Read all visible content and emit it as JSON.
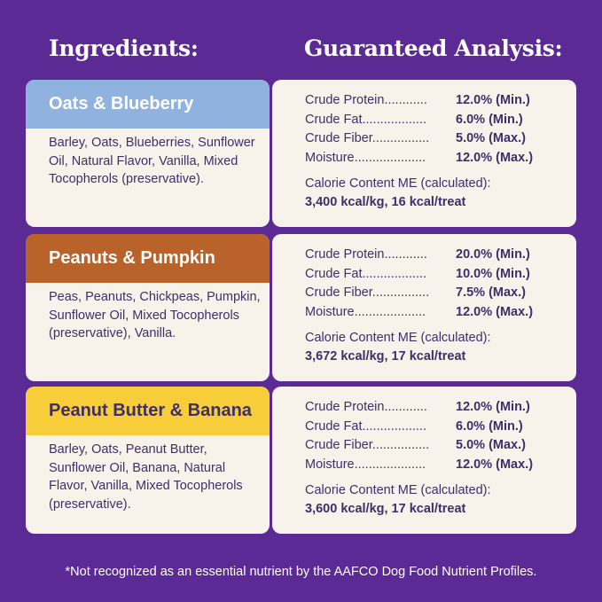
{
  "headings": {
    "ingredients": "Ingredients:",
    "analysis": "Guaranteed Analysis:"
  },
  "products": [
    {
      "name": "Oats & Blueberry",
      "band_color": "#8fb3de",
      "name_color": "#ffffff",
      "ingredients": "Barley, Oats, Blueberries, Sunflower Oil, Natural Flavor, Vanilla, Mixed Tocopherols (preservative).",
      "analysis": [
        {
          "label": "Crude Protein............",
          "value": "12.0% (Min.)"
        },
        {
          "label": "Crude  Fat..................",
          "value": "6.0% (Min.)"
        },
        {
          "label": "Crude  Fiber................",
          "value": "5.0% (Max.)"
        },
        {
          "label": "Moisture....................",
          "value": "12.0% (Max.)"
        }
      ],
      "calorie_label": "Calorie Content ME (calculated):",
      "calorie_value": "3,400 kcal/kg, 16 kcal/treat"
    },
    {
      "name": "Peanuts & Pumpkin",
      "band_color": "#b9622a",
      "name_color": "#ffffff",
      "ingredients": "Peas, Peanuts, Chickpeas, Pumpkin, Sunflower Oil, Mixed Tocopherols (preservative), Vanilla.",
      "analysis": [
        {
          "label": "Crude Protein............",
          "value": "20.0% (Min.)"
        },
        {
          "label": "Crude  Fat..................",
          "value": "10.0% (Min.)"
        },
        {
          "label": "Crude  Fiber................",
          "value": "7.5% (Max.)"
        },
        {
          "label": "Moisture....................",
          "value": "12.0% (Max.)"
        }
      ],
      "calorie_label": "Calorie Content ME (calculated):",
      "calorie_value": "3,672 kcal/kg, 17 kcal/treat"
    },
    {
      "name": "Peanut Butter & Banana",
      "band_color": "#f8cd3a",
      "name_color": "#3e2e6a",
      "ingredients": "Barley, Oats, Peanut Butter, Sunflower Oil, Banana, Natural Flavor, Vanilla, Mixed Tocopherols (preservative).",
      "analysis": [
        {
          "label": "Crude Protein............",
          "value": "12.0% (Min.)"
        },
        {
          "label": "Crude  Fat..................",
          "value": "6.0% (Min.)"
        },
        {
          "label": "Crude  Fiber................",
          "value": "5.0% (Max.)"
        },
        {
          "label": "Moisture....................",
          "value": "12.0% (Max.)"
        }
      ],
      "calorie_label": "Calorie Content ME (calculated):",
      "calorie_value": "3,600 kcal/kg, 17 kcal/treat"
    }
  ],
  "footnote": "*Not recognized as an essential nutrient by the AAFCO Dog Food Nutrient Profiles.",
  "colors": {
    "background": "#5b2a94",
    "card": "#f8f3ea",
    "text": "#3e2e6a"
  }
}
